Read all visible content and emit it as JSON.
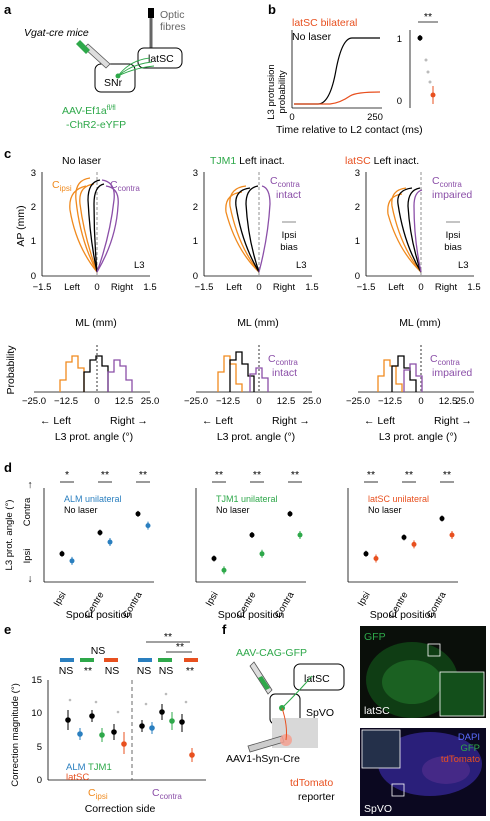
{
  "panel_labels": [
    "a",
    "b",
    "c",
    "d",
    "e",
    "f"
  ],
  "colors": {
    "orange": "#F08A1E",
    "purple": "#8B4FA8",
    "green": "#2EA84A",
    "red": "#E8501F",
    "blue": "#2A7FBF",
    "gray": "#9a9a9a"
  },
  "a": {
    "mouse": "Vgat-cre mice",
    "fibres_1": "Optic",
    "fibres_2": "fibres",
    "latsc": "latSC",
    "snr": "SNr",
    "virus_1": "AAV-Ef1a",
    "virus_sup": "fl/fl",
    "virus_2": "-ChR2-eYFP"
  },
  "b": {
    "legend_latsc": "latSC bilateral",
    "legend_nolaser": "No laser",
    "ylabel_1": "L3 protrusion",
    "ylabel_2": "probability",
    "xlabel": "Time relative to L2 contact (ms)",
    "xticks": [
      "0",
      "250"
    ],
    "yticks": [
      "0",
      "1"
    ],
    "sig": "**",
    "chart_data": {
      "type": "line",
      "x_range": [
        0,
        250
      ],
      "ylim": [
        0,
        1
      ],
      "series": [
        {
          "name": "No laser",
          "color": "#000000"
        },
        {
          "name": "latSC bilateral",
          "color": "#E8501F"
        }
      ],
      "inset": {
        "type": "scatter",
        "categories": [
          "No laser",
          "latSC bilateral"
        ],
        "means": [
          0.98,
          0.12
        ]
      }
    }
  },
  "c": {
    "titles": [
      {
        "pre": "",
        "main": "No laser",
        "post": ""
      },
      {
        "pre": "TJM1",
        "main": " Left inact.",
        "post": ""
      },
      {
        "pre": "latSC",
        "main": " Left inact.",
        "post": ""
      }
    ],
    "ylabel": "AP (mm)",
    "xlabel": "ML (mm)",
    "xticks": [
      "−1.5",
      "Left",
      "0",
      "Right",
      "1.5"
    ],
    "yticks": [
      "0",
      "1",
      "2",
      "3"
    ],
    "lick": "L3",
    "c_ipsi": "C",
    "c_ipsi_sub": "ipsi",
    "c_contra": "C",
    "c_contra_sub": "contra",
    "intact": "intact",
    "impaired": "impaired",
    "bias_1": "Ipsi",
    "bias_2": "bias",
    "hist_ylabel": "Probability",
    "hist_xticks": [
      "−25.0",
      "−12.5",
      "0",
      "12.5",
      "25.0"
    ],
    "hist_xlabel": "L3 prot. angle (°)",
    "hist_left": "← Left",
    "hist_right": "Right →"
  },
  "d": {
    "ylabel": "L3 prot. angle (°)",
    "contra": "Contra",
    "ipsi": "Ipsi",
    "xticks": [
      "Ipsi",
      "Centre",
      "Contra"
    ],
    "xlabel": "Spout position",
    "legends": [
      {
        "name": "ALM unilateral",
        "color": "#2A7FBF"
      },
      {
        "name": "TJM1 unilateral",
        "color": "#2EA84A"
      },
      {
        "name": "latSC unilateral",
        "color": "#E8501F"
      }
    ],
    "nolaser": "No laser",
    "sig": [
      [
        "*",
        "**",
        "**"
      ],
      [
        "**",
        "**",
        "**"
      ],
      [
        "**",
        "**",
        "**"
      ]
    ],
    "chart_data": {
      "type": "scatter",
      "categories": [
        "Ipsi",
        "Centre",
        "Contra"
      ],
      "ylim": [
        -20,
        20
      ],
      "panels": [
        {
          "name": "ALM unilateral",
          "no_laser": [
            -8,
            1,
            9
          ],
          "laser": [
            -11,
            -3,
            4
          ]
        },
        {
          "name": "TJM1 unilateral",
          "no_laser": [
            -10,
            0,
            9
          ],
          "laser": [
            -15,
            -8,
            0
          ]
        },
        {
          "name": "latSC unilateral",
          "no_laser": [
            -8,
            -1,
            7
          ],
          "laser": [
            -10,
            -4,
            0
          ]
        }
      ]
    }
  },
  "e": {
    "ylabel": "Correction magnitude (°)",
    "yticks": [
      "0",
      "5",
      "10",
      "15"
    ],
    "xlabel": "Correction side",
    "c_ipsi": "C",
    "c_ipsi_sub": "ipsi",
    "c_contra": "C",
    "c_contra_sub": "contra",
    "alm": "ALM",
    "tjm1": "TJM1",
    "latsc": "latSC",
    "ns": "NS",
    "sig": "**",
    "chart_data": {
      "type": "scatter",
      "ylim": [
        0,
        15
      ],
      "categories": [
        "C ipsi",
        "C contra"
      ],
      "series": [
        {
          "name": "ALM",
          "values": [
            [
              9,
              7
            ],
            [
              8,
              7.5
            ]
          ]
        },
        {
          "name": "TJM1",
          "values": [
            [
              10,
              7
            ],
            [
              10.5,
              8.5
            ]
          ]
        },
        {
          "name": "latSC",
          "values": [
            [
              7,
              5.5
            ],
            [
              9,
              4
            ]
          ]
        }
      ]
    }
  },
  "f": {
    "virus": "AAV-CAG-GFP",
    "latsc": "latSC",
    "spvo": "SpVO",
    "cre": "AAV1-hSyn-Cre",
    "reporter_1": "tdTomato",
    "reporter_2": "reporter",
    "gfp": "GFP",
    "dapi": "DAPI",
    "gfp2": "GFP",
    "tdtomato": "tdTomato",
    "latsc_img": "latSC",
    "spvo_img": "SpVO"
  }
}
